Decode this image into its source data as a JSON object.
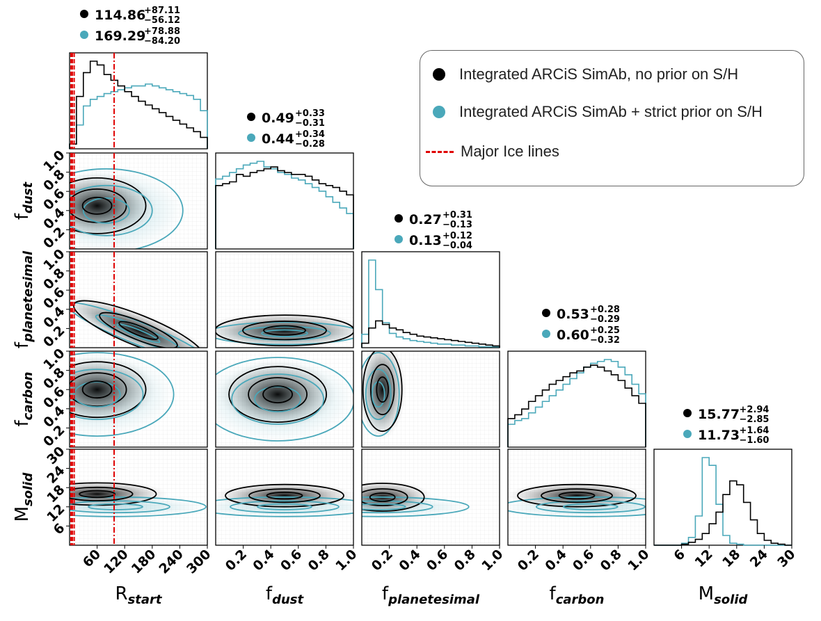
{
  "colors": {
    "prior_none": "#000000",
    "prior_strict": "#4aa8ba",
    "ice": "#e00000"
  },
  "legend": {
    "placement": "top-right",
    "entries": [
      {
        "label": "Integrated ARCiS SimAb, no prior on S/H",
        "marker": "circle",
        "color": "#000000"
      },
      {
        "label": "Integrated ARCiS SimAb + strict prior on S/H",
        "marker": "circle",
        "color": "#4aa8ba"
      },
      {
        "label": "Major Ice lines",
        "marker": "dashed-line",
        "color": "#e00000"
      }
    ]
  },
  "chart_data": {
    "type": "corner",
    "parameters": [
      {
        "key": "R_start",
        "label_main": "R",
        "label_sub": "start",
        "range": [
          0,
          300
        ],
        "ticks": [
          "60",
          "120",
          "180",
          "240",
          "300"
        ]
      },
      {
        "key": "f_dust",
        "label_main": "f",
        "label_sub": "dust",
        "range": [
          0,
          1
        ],
        "ticks": [
          "0.2",
          "0.4",
          "0.6",
          "0.8",
          "1.0"
        ]
      },
      {
        "key": "f_planetesimal",
        "label_main": "f",
        "label_sub": "planetesimal",
        "range": [
          0,
          1
        ],
        "ticks": [
          "0.2",
          "0.4",
          "0.6",
          "0.8",
          "1.0"
        ]
      },
      {
        "key": "f_carbon",
        "label_main": "f",
        "label_sub": "carbon",
        "range": [
          0,
          1
        ],
        "ticks": [
          "0.2",
          "0.4",
          "0.6",
          "0.8",
          "1.0"
        ]
      },
      {
        "key": "M_solid",
        "label_main": "M",
        "label_sub": "solid",
        "range": [
          0,
          30
        ],
        "ticks": [
          "6",
          "12",
          "18",
          "24",
          "30"
        ]
      }
    ],
    "summaries": [
      [
        {
          "value": "114.86",
          "plus": "+87.11",
          "minus": "−56.12"
        },
        {
          "value": "169.29",
          "plus": "+78.88",
          "minus": "−84.20"
        }
      ],
      [
        {
          "value": "0.49",
          "plus": "+0.33",
          "minus": "−0.31"
        },
        {
          "value": "0.44",
          "plus": "+0.34",
          "minus": "−0.28"
        }
      ],
      [
        {
          "value": "0.27",
          "plus": "+0.31",
          "minus": "−0.13"
        },
        {
          "value": "0.13",
          "plus": "+0.12",
          "minus": "−0.04"
        }
      ],
      [
        {
          "value": "0.53",
          "plus": "+0.28",
          "minus": "−0.29"
        },
        {
          "value": "0.60",
          "plus": "+0.25",
          "minus": "−0.32"
        }
      ],
      [
        {
          "value": "15.77",
          "plus": "+2.94",
          "minus": "−2.85"
        },
        {
          "value": "11.73",
          "plus": "+1.64",
          "minus": "−1.60"
        }
      ]
    ],
    "ice_lines_R_start": [
      3,
      6,
      10,
      97
    ],
    "marginals": {
      "R_start": {
        "bins": [
          0,
          15,
          30,
          45,
          60,
          75,
          90,
          105,
          120,
          135,
          150,
          165,
          180,
          195,
          210,
          225,
          240,
          255,
          270,
          285,
          300
        ],
        "no_prior": [
          0.05,
          0.55,
          0.8,
          0.92,
          0.88,
          0.78,
          0.72,
          0.66,
          0.6,
          0.55,
          0.5,
          0.46,
          0.42,
          0.38,
          0.34,
          0.3,
          0.26,
          0.22,
          0.18,
          0.12
        ],
        "strict_prior": [
          0.05,
          0.25,
          0.45,
          0.52,
          0.55,
          0.58,
          0.6,
          0.62,
          0.64,
          0.66,
          0.66,
          0.68,
          0.66,
          0.64,
          0.62,
          0.6,
          0.58,
          0.56,
          0.52,
          0.4
        ]
      },
      "f_dust": {
        "bins": [
          0,
          0.05,
          0.1,
          0.15,
          0.2,
          0.25,
          0.3,
          0.35,
          0.4,
          0.45,
          0.5,
          0.55,
          0.6,
          0.65,
          0.7,
          0.75,
          0.8,
          0.85,
          0.9,
          0.95,
          1.0
        ],
        "no_prior": [
          0.68,
          0.7,
          0.72,
          0.8,
          0.78,
          0.82,
          0.84,
          0.86,
          0.88,
          0.84,
          0.82,
          0.8,
          0.8,
          0.78,
          0.74,
          0.7,
          0.68,
          0.66,
          0.62,
          0.58
        ],
        "strict_prior": [
          0.75,
          0.78,
          0.82,
          0.86,
          0.9,
          0.92,
          0.94,
          0.88,
          0.86,
          0.82,
          0.8,
          0.76,
          0.74,
          0.7,
          0.66,
          0.62,
          0.56,
          0.5,
          0.44,
          0.38
        ]
      },
      "f_planetesimal": {
        "bins": [
          0,
          0.05,
          0.1,
          0.15,
          0.2,
          0.25,
          0.3,
          0.35,
          0.4,
          0.45,
          0.5,
          0.55,
          0.6,
          0.65,
          0.7,
          0.75,
          0.8,
          0.85,
          0.9,
          0.95,
          1.0
        ],
        "no_prior": [
          0.05,
          0.22,
          0.3,
          0.26,
          0.22,
          0.2,
          0.17,
          0.15,
          0.13,
          0.12,
          0.11,
          0.1,
          0.09,
          0.08,
          0.07,
          0.06,
          0.05,
          0.04,
          0.03,
          0.02
        ],
        "strict_prior": [
          0.15,
          0.98,
          0.65,
          0.28,
          0.16,
          0.12,
          0.1,
          0.08,
          0.07,
          0.06,
          0.05,
          0.04,
          0.04,
          0.03,
          0.03,
          0.02,
          0.02,
          0.01,
          0.01,
          0.01
        ]
      },
      "f_carbon": {
        "bins": [
          0,
          0.05,
          0.1,
          0.15,
          0.2,
          0.25,
          0.3,
          0.35,
          0.4,
          0.45,
          0.5,
          0.55,
          0.6,
          0.65,
          0.7,
          0.75,
          0.8,
          0.85,
          0.9,
          0.95,
          1.0
        ],
        "no_prior": [
          0.3,
          0.34,
          0.4,
          0.48,
          0.54,
          0.6,
          0.66,
          0.7,
          0.74,
          0.78,
          0.8,
          0.84,
          0.86,
          0.84,
          0.8,
          0.76,
          0.7,
          0.62,
          0.54,
          0.46
        ],
        "strict_prior": [
          0.24,
          0.28,
          0.3,
          0.36,
          0.42,
          0.48,
          0.54,
          0.6,
          0.66,
          0.72,
          0.78,
          0.84,
          0.88,
          0.9,
          0.92,
          0.9,
          0.84,
          0.76,
          0.66,
          0.56
        ]
      },
      "M_solid": {
        "bins": [
          0,
          1.5,
          3,
          4.5,
          6,
          7.5,
          9,
          10.5,
          12,
          13.5,
          15,
          16.5,
          18,
          19.5,
          21,
          22.5,
          24,
          25.5,
          27,
          28.5,
          30
        ],
        "no_prior": [
          0,
          0,
          0,
          0,
          0.01,
          0.03,
          0.06,
          0.12,
          0.22,
          0.34,
          0.52,
          0.66,
          0.62,
          0.44,
          0.26,
          0.12,
          0.05,
          0.02,
          0.01,
          0
        ],
        "strict_prior": [
          0,
          0,
          0,
          0,
          0.02,
          0.08,
          0.3,
          0.9,
          0.82,
          0.42,
          0.1,
          0.02,
          0.01,
          0,
          0,
          0,
          0,
          0,
          0,
          0
        ]
      }
    },
    "joint_peaks": {
      "f_dust_vs_R_start": {
        "no_prior": [
          60,
          0.45
        ],
        "strict_prior": [
          80,
          0.4
        ]
      },
      "f_planetesimal_vs_R_start": {
        "no_prior": [
          150,
          0.18
        ],
        "strict_prior": [
          150,
          0.15
        ]
      },
      "f_planetesimal_vs_f_dust": {
        "no_prior": [
          0.5,
          0.18
        ],
        "strict_prior": [
          0.5,
          0.15
        ]
      },
      "f_carbon_vs_R_start": {
        "no_prior": [
          60,
          0.6
        ],
        "strict_prior": [
          60,
          0.55
        ]
      },
      "f_carbon_vs_f_dust": {
        "no_prior": [
          0.45,
          0.55
        ],
        "strict_prior": [
          0.45,
          0.5
        ]
      },
      "f_carbon_vs_f_planetesimal": {
        "no_prior": [
          0.15,
          0.6
        ],
        "strict_prior": [
          0.12,
          0.55
        ]
      },
      "M_solid_vs_R_start": {
        "no_prior": [
          60,
          16
        ],
        "strict_prior": [
          100,
          12
        ]
      },
      "M_solid_vs_f_dust": {
        "no_prior": [
          0.5,
          15.5
        ],
        "strict_prior": [
          0.5,
          12
        ]
      },
      "M_solid_vs_f_planetesimal": {
        "no_prior": [
          0.15,
          15
        ],
        "strict_prior": [
          0.12,
          12
        ]
      },
      "M_solid_vs_f_carbon": {
        "no_prior": [
          0.5,
          15.5
        ],
        "strict_prior": [
          0.6,
          12
        ]
      }
    }
  }
}
